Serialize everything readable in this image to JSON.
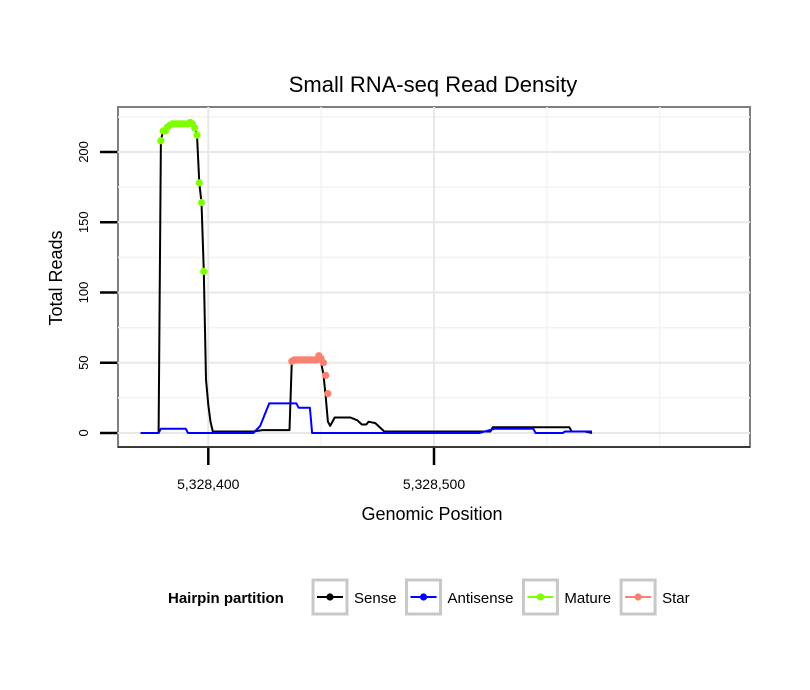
{
  "chart_data": {
    "type": "line",
    "title": "Small RNA-seq Read Density",
    "xlabel": "Genomic Position",
    "ylabel": "Total Reads",
    "xlim": [
      5328360,
      5328640
    ],
    "ylim": [
      -10,
      232
    ],
    "xticks": [
      {
        "value": 5328400,
        "label": "5,328,400"
      },
      {
        "value": 5328500,
        "label": "5,328,500"
      }
    ],
    "yticks": [
      {
        "value": 0,
        "label": "0"
      },
      {
        "value": 50,
        "label": "50"
      },
      {
        "value": 100,
        "label": "100"
      },
      {
        "value": 150,
        "label": "150"
      },
      {
        "value": 200,
        "label": "200"
      }
    ],
    "grid": true,
    "legend": {
      "title": "Hairpin partition",
      "placement": "bottom",
      "entries": [
        {
          "name": "Sense",
          "color": "#000000"
        },
        {
          "name": "Antisense",
          "color": "#0000ff"
        },
        {
          "name": "Mature",
          "color": "#7fff00"
        },
        {
          "name": "Star",
          "color": "#fa8072"
        }
      ]
    },
    "series": [
      {
        "name": "Sense",
        "color": "#000000",
        "kind": "line",
        "x": [
          5328370,
          5328378,
          5328379,
          5328380,
          5328382,
          5328385,
          5328393,
          5328394,
          5328395,
          5328396,
          5328397,
          5328398,
          5328399,
          5328400,
          5328401,
          5328402,
          5328403,
          5328405,
          5328420,
          5328424,
          5328436,
          5328437,
          5328440,
          5328445,
          5328449,
          5328450,
          5328451,
          5328452,
          5328453,
          5328454,
          5328456,
          5328463,
          5328466,
          5328468,
          5328470,
          5328471,
          5328474,
          5328478,
          5328525,
          5328526,
          5328540,
          5328542,
          5328560,
          5328561,
          5328567,
          5328570
        ],
        "y": [
          0,
          0,
          208,
          215,
          219,
          220,
          220,
          217,
          212,
          178,
          164,
          115,
          38,
          20,
          8,
          1,
          1,
          1,
          1,
          2,
          2,
          51,
          52,
          52,
          54,
          50,
          42,
          26,
          8,
          5,
          11,
          11,
          9,
          6,
          6,
          8,
          7,
          1,
          1,
          4,
          4,
          4,
          4,
          1,
          1,
          0
        ]
      },
      {
        "name": "Antisense",
        "color": "#0000ff",
        "kind": "line",
        "x": [
          5328370,
          5328378,
          5328379,
          5328390,
          5328391,
          5328415,
          5328420,
          5328423,
          5328427,
          5328439,
          5328440,
          5328445,
          5328446,
          5328520,
          5328527,
          5328544,
          5328545,
          5328557,
          5328558,
          5328570
        ],
        "y": [
          0,
          0,
          3,
          3,
          0,
          0,
          0,
          5,
          21,
          21,
          18,
          18,
          0,
          0,
          3,
          3,
          0,
          0,
          1,
          1
        ]
      },
      {
        "name": "Mature",
        "color": "#7fff00",
        "kind": "points",
        "x": [
          5328379,
          5328380,
          5328381,
          5328382,
          5328383,
          5328384,
          5328385,
          5328386,
          5328387,
          5328388,
          5328389,
          5328390,
          5328391,
          5328392,
          5328393,
          5328394,
          5328395,
          5328396,
          5328397,
          5328398
        ],
        "y": [
          208,
          215,
          215,
          218,
          219,
          220,
          220,
          220,
          220,
          220,
          220,
          220,
          220,
          221,
          220,
          217,
          212,
          178,
          164,
          115
        ]
      },
      {
        "name": "Star",
        "color": "#fa8072",
        "kind": "points",
        "x": [
          5328437,
          5328438,
          5328439,
          5328440,
          5328441,
          5328442,
          5328443,
          5328444,
          5328445,
          5328446,
          5328447,
          5328448,
          5328449,
          5328450,
          5328451,
          5328452,
          5328453
        ],
        "y": [
          51,
          52,
          52,
          52,
          52,
          52,
          52,
          52,
          52,
          52,
          52,
          52,
          55,
          53,
          50,
          41,
          28
        ]
      }
    ]
  }
}
